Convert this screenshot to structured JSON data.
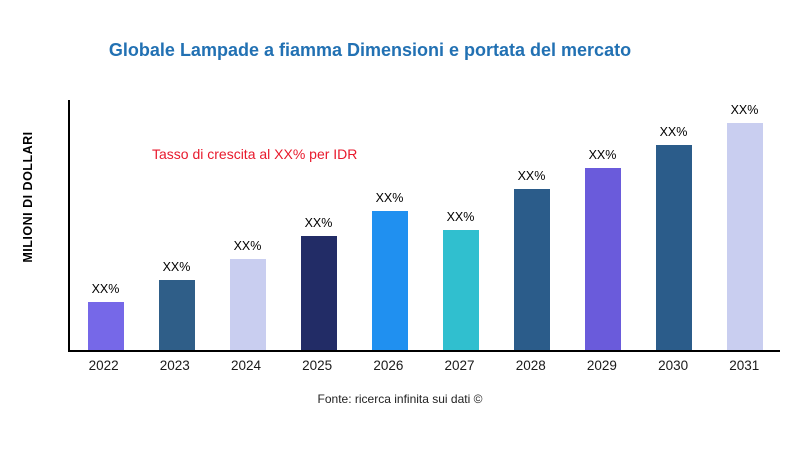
{
  "title": "Globale Lampade a fiamma Dimensioni e portata del mercato",
  "y_axis_label": "MILIONI DI DOLLARI",
  "annotation": "Tasso di crescita al XX% per IDR",
  "footer": "Fonte: ricerca infinita sui dati ©",
  "colors": {
    "title": "#2271B3",
    "annotation": "#E8192C",
    "axis": "#000000",
    "background": "#FFFFFF"
  },
  "chart_data": {
    "type": "bar",
    "title": "Globale Lampade a fiamma Dimensioni e portata del mercato",
    "xlabel": "",
    "ylabel": "MILIONI DI DOLLARI",
    "categories": [
      "2022",
      "2023",
      "2024",
      "2025",
      "2026",
      "2027",
      "2028",
      "2029",
      "2030",
      "2031"
    ],
    "values": [
      21,
      31,
      40,
      50,
      61,
      53,
      71,
      80,
      90,
      100
    ],
    "bar_labels": [
      "XX%",
      "XX%",
      "XX%",
      "XX%",
      "XX%",
      "XX%",
      "XX%",
      "XX%",
      "XX%",
      "XX%"
    ],
    "bar_colors": [
      "#7668E8",
      "#2F5E88",
      "#C9CEF0",
      "#222C66",
      "#2090F0",
      "#30BFCF",
      "#2B5C8A",
      "#6A5BDB",
      "#2B5C8A",
      "#C9CEF0"
    ],
    "ylim": [
      0,
      110
    ],
    "grid": false,
    "legend": false,
    "annotation": "Tasso di crescita al XX% per IDR",
    "source_note": "Fonte: ricerca infinita sui dati ©"
  }
}
